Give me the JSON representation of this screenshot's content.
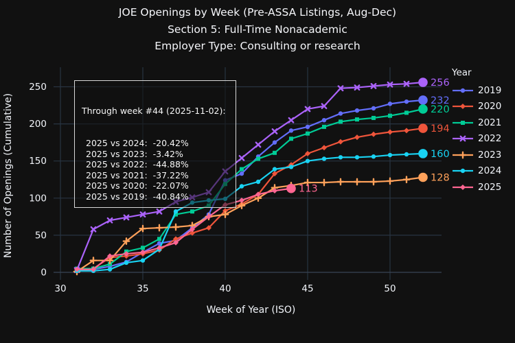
{
  "page": {
    "background": "#111111",
    "text_color": "#f2f5fa",
    "grid_color": "#283442",
    "zeroline_color": "#3a4556"
  },
  "title": {
    "line1": "JOE Openings by Week (Pre-ASSA Listings, Aug-Dec)",
    "line2": "Section 5: Full-Time Nonacademic",
    "line3": "Employer Type: Consulting or research"
  },
  "axes": {
    "x": {
      "title": "Week of Year (ISO)",
      "ticks": [
        30,
        35,
        40,
        45,
        50
      ]
    },
    "y": {
      "title": "Number of Openings (Cumulative)",
      "ticks": [
        0,
        50,
        100,
        150,
        200,
        250
      ]
    }
  },
  "legend": {
    "title": "Year"
  },
  "annotation": {
    "header": "Through week #44 (2025-11-02):",
    "lines": [
      "2025 vs 2024:  -20.42%",
      "2025 vs 2023:  -3.42%",
      "2025 vs 2022:  -44.88%",
      "2025 vs 2021:  -37.22%",
      "2025 vs 2020:  -22.07%",
      "2025 vs 2019:  -40.84%"
    ]
  },
  "chart_data": {
    "type": "line",
    "xlabel": "Week of Year (ISO)",
    "ylabel": "Number of Openings (Cumulative)",
    "x_weeks": [
      31,
      32,
      33,
      34,
      35,
      36,
      37,
      38,
      39,
      40,
      41,
      42,
      43,
      44,
      45,
      46,
      47,
      48,
      49,
      50,
      51,
      52
    ],
    "xlim": [
      29.6,
      53.6
    ],
    "ylim": [
      -8,
      268
    ],
    "grid": true,
    "legend_position": "right",
    "series": [
      {
        "name": "2019",
        "color": "#636efa",
        "marker": "circle",
        "values": [
          2,
          4,
          8,
          14,
          27,
          39,
          43,
          60,
          78,
          124,
          133,
          156,
          175,
          191,
          196,
          205,
          214,
          218,
          221,
          227,
          230,
          232
        ],
        "end_label": "232"
      },
      {
        "name": "2020",
        "color": "#EF553B",
        "marker": "diamond",
        "values": [
          2,
          5,
          20,
          22,
          25,
          30,
          45,
          53,
          60,
          83,
          92,
          105,
          133,
          145,
          160,
          168,
          176,
          182,
          186,
          189,
          191,
          194
        ],
        "end_label": "194"
      },
      {
        "name": "2021",
        "color": "#00cc96",
        "marker": "square",
        "values": [
          5,
          5,
          11,
          28,
          33,
          45,
          78,
          82,
          90,
          119,
          139,
          153,
          161,
          180,
          187,
          196,
          203,
          206,
          208,
          211,
          215,
          220
        ],
        "end_label": "220"
      },
      {
        "name": "2022",
        "color": "#ab63fa",
        "marker": "x",
        "values": [
          3,
          58,
          70,
          74,
          78,
          82,
          95,
          101,
          108,
          136,
          154,
          172,
          190,
          205,
          220,
          224,
          248,
          249,
          251,
          253,
          254,
          256
        ],
        "end_label": "256"
      },
      {
        "name": "2023",
        "color": "#FFA15A",
        "marker": "plus",
        "values": [
          1,
          16,
          16,
          42,
          59,
          60,
          61,
          63,
          75,
          78,
          90,
          100,
          114,
          117,
          121,
          121,
          122,
          122,
          122,
          123,
          125,
          128
        ],
        "end_label": "128"
      },
      {
        "name": "2024",
        "color": "#19d3f3",
        "marker": "circle",
        "values": [
          2,
          2,
          4,
          13,
          16,
          31,
          82,
          94,
          97,
          99,
          116,
          122,
          139,
          142,
          150,
          153,
          155,
          155,
          156,
          158,
          159,
          160
        ],
        "end_label": "160"
      },
      {
        "name": "2025",
        "color": "#FF6692",
        "marker": "diamond",
        "values": [
          4,
          4,
          22,
          25,
          27,
          33,
          40,
          58,
          75,
          91,
          97,
          105,
          110,
          113
        ],
        "end_label": "113"
      }
    ]
  }
}
